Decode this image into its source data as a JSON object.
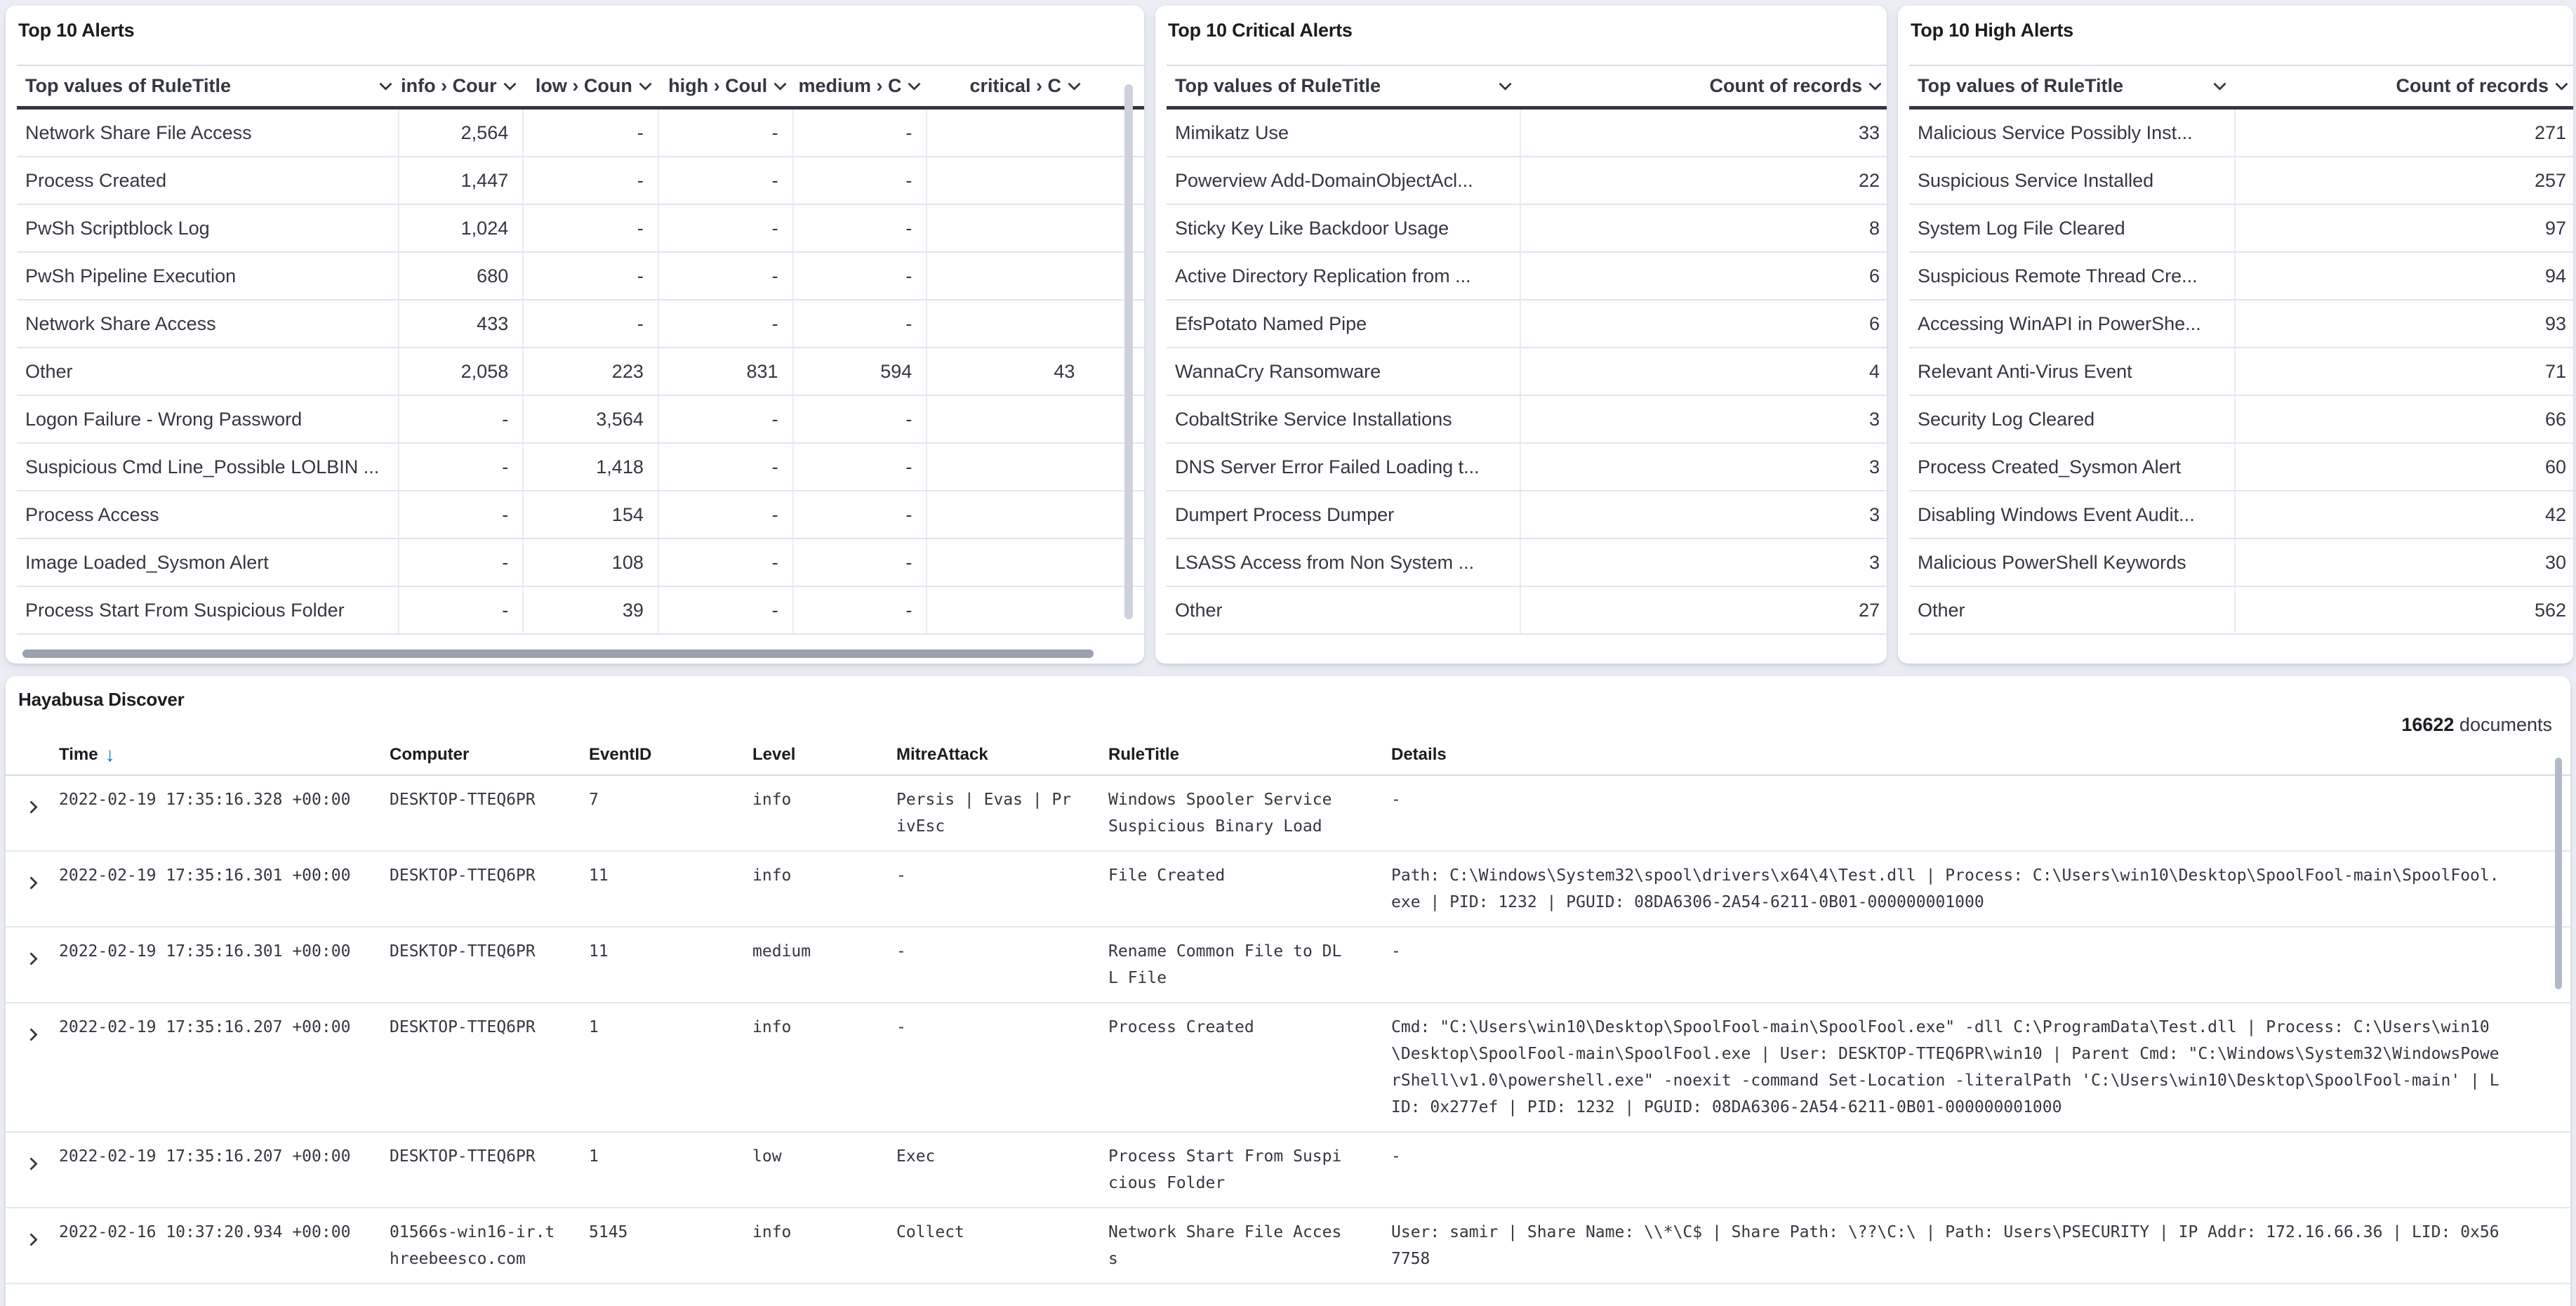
{
  "colors": {
    "accent_blue": "#0c78c2",
    "header_dark": "#343741",
    "panel_bg": "#ffffff",
    "page_bg": "#eceef5"
  },
  "alerts": {
    "title": "Top 10 Alerts",
    "name_header": "Top values of RuleTitle",
    "value_headers": [
      "info › Cour",
      "low › Coun",
      "high › Coul",
      "medium › C",
      "critical › C"
    ],
    "rows": [
      [
        "Network Share File Access",
        "2,564",
        "-",
        "-",
        "-",
        ""
      ],
      [
        "Process Created",
        "1,447",
        "-",
        "-",
        "-",
        ""
      ],
      [
        "PwSh Scriptblock Log",
        "1,024",
        "-",
        "-",
        "-",
        ""
      ],
      [
        "PwSh Pipeline Execution",
        "680",
        "-",
        "-",
        "-",
        ""
      ],
      [
        "Network Share Access",
        "433",
        "-",
        "-",
        "-",
        ""
      ],
      [
        "Other",
        "2,058",
        "223",
        "831",
        "594",
        "43"
      ],
      [
        "Logon Failure - Wrong Password",
        "-",
        "3,564",
        "-",
        "-",
        ""
      ],
      [
        "Suspicious Cmd Line_Possible LOLBIN ...",
        "-",
        "1,418",
        "-",
        "-",
        ""
      ],
      [
        "Process Access",
        "-",
        "154",
        "-",
        "-",
        ""
      ],
      [
        "Image Loaded_Sysmon Alert",
        "-",
        "108",
        "-",
        "-",
        ""
      ],
      [
        "Process Start From Suspicious Folder",
        "-",
        "39",
        "-",
        "-",
        ""
      ]
    ]
  },
  "critical_alerts": {
    "title": "Top 10 Critical Alerts",
    "name_header": "Top values of RuleTitle",
    "count_header": "Count of records",
    "rows": [
      [
        "Mimikatz Use",
        "33"
      ],
      [
        "Powerview Add-DomainObjectAcl...",
        "22"
      ],
      [
        "Sticky Key Like Backdoor Usage",
        "8"
      ],
      [
        "Active Directory Replication from ...",
        "6"
      ],
      [
        "EfsPotato Named Pipe",
        "6"
      ],
      [
        "WannaCry Ransomware",
        "4"
      ],
      [
        "CobaltStrike Service Installations",
        "3"
      ],
      [
        "DNS Server Error Failed Loading t...",
        "3"
      ],
      [
        "Dumpert Process Dumper",
        "3"
      ],
      [
        "LSASS Access from Non System ...",
        "3"
      ],
      [
        "Other",
        "27"
      ]
    ]
  },
  "high_alerts": {
    "title": "Top 10 High Alerts",
    "name_header": "Top values of RuleTitle",
    "count_header": "Count of records",
    "rows": [
      [
        "Malicious Service Possibly Inst...",
        "271"
      ],
      [
        "Suspicious Service Installed",
        "257"
      ],
      [
        "System Log File Cleared",
        "97"
      ],
      [
        "Suspicious Remote Thread Cre...",
        "94"
      ],
      [
        "Accessing WinAPI in PowerShe...",
        "93"
      ],
      [
        "Relevant Anti-Virus Event",
        "71"
      ],
      [
        "Security Log Cleared",
        "66"
      ],
      [
        "Process Created_Sysmon Alert",
        "60"
      ],
      [
        "Disabling Windows Event Audit...",
        "42"
      ],
      [
        "Malicious PowerShell Keywords",
        "30"
      ],
      [
        "Other",
        "562"
      ]
    ]
  },
  "discover": {
    "title": "Hayabusa Discover",
    "doc_count": "16622",
    "doc_label": "documents",
    "headers": [
      "Time",
      "Computer",
      "EventID",
      "Level",
      "MitreAttack",
      "RuleTitle",
      "Details"
    ],
    "rows": [
      {
        "time": "2022-02-19 17:35:16.328 +00:00",
        "computer": "DESKTOP-TTEQ6PR",
        "event_id": "7",
        "level": "info",
        "mitre": "Persis | Evas | PrivEsc",
        "rule": "Windows Spooler Service Suspicious Binary Load",
        "details": "-"
      },
      {
        "time": "2022-02-19 17:35:16.301 +00:00",
        "computer": "DESKTOP-TTEQ6PR",
        "event_id": "11",
        "level": "info",
        "mitre": "-",
        "rule": "File Created",
        "details": "Path: C:\\Windows\\System32\\spool\\drivers\\x64\\4\\Test.dll | Process: C:\\Users\\win10\\Desktop\\SpoolFool-main\\SpoolFool.exe | PID: 1232 | PGUID: 08DA6306-2A54-6211-0B01-000000001000"
      },
      {
        "time": "2022-02-19 17:35:16.301 +00:00",
        "computer": "DESKTOP-TTEQ6PR",
        "event_id": "11",
        "level": "medium",
        "mitre": "-",
        "rule": "Rename Common File to DLL File",
        "details": "-"
      },
      {
        "time": "2022-02-19 17:35:16.207 +00:00",
        "computer": "DESKTOP-TTEQ6PR",
        "event_id": "1",
        "level": "info",
        "mitre": "-",
        "rule": "Process Created",
        "details": "Cmd: \"C:\\Users\\win10\\Desktop\\SpoolFool-main\\SpoolFool.exe\" -dll C:\\ProgramData\\Test.dll | Process: C:\\Users\\win10\\Desktop\\SpoolFool-main\\SpoolFool.exe | User: DESKTOP-TTEQ6PR\\win10 | Parent Cmd: \"C:\\Windows\\System32\\WindowsPowerShell\\v1.0\\powershell.exe\" -noexit -command Set-Location -literalPath 'C:\\Users\\win10\\Desktop\\SpoolFool-main' | LID: 0x277ef | PID: 1232 | PGUID: 08DA6306-2A54-6211-0B01-000000001000"
      },
      {
        "time": "2022-02-19 17:35:16.207 +00:00",
        "computer": "DESKTOP-TTEQ6PR",
        "event_id": "1",
        "level": "low",
        "mitre": "Exec",
        "rule": "Process Start From Suspicious Folder",
        "details": "-"
      },
      {
        "time": "2022-02-16 10:37:20.934 +00:00",
        "computer": "01566s-win16-ir.threebeesco.com",
        "event_id": "5145",
        "level": "info",
        "mitre": "Collect",
        "rule": "Network Share File Access",
        "details": "User: samir | Share Name: \\\\*\\C$ | Share Path: \\??\\C:\\ | Path: Users\\PSECURITY | IP Addr: 172.16.66.36 | LID: 0x567758"
      }
    ]
  }
}
